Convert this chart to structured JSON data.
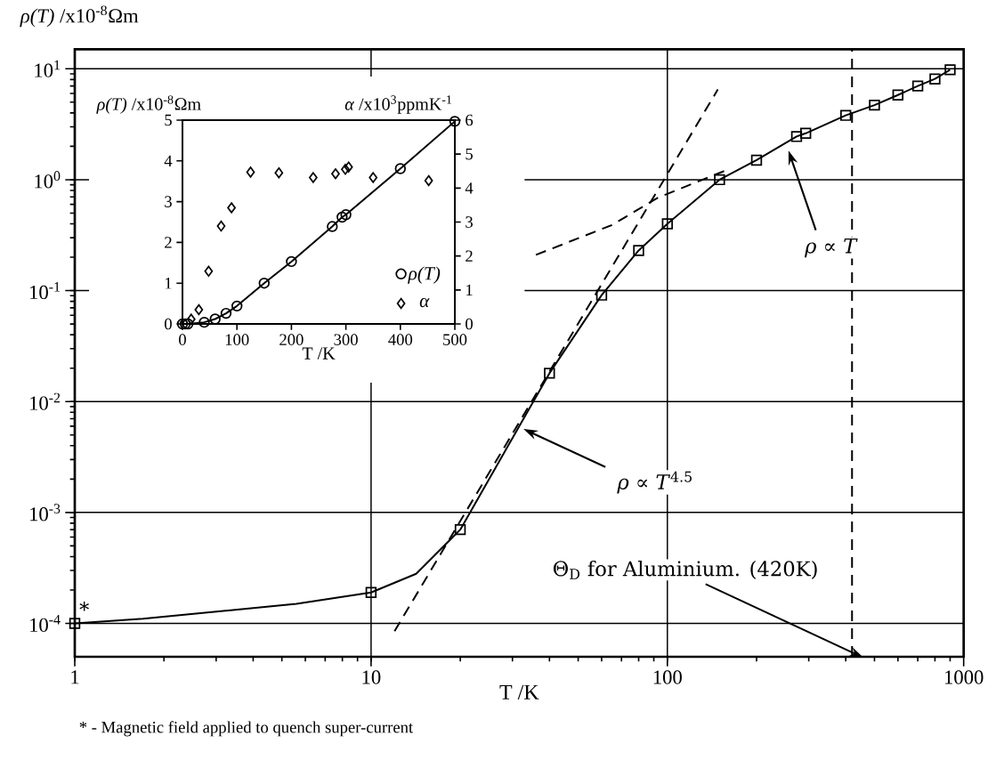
{
  "chart_data": [
    {
      "type": "line",
      "xlabel": "T /K",
      "ylabel": "*ρ(T)* /x10$^{-8}$Ωm",
      "log": "xy",
      "xlim": [
        1,
        1000
      ],
      "ylim": [
        5e-05,
        15
      ],
      "xticks": [
        1,
        10,
        100,
        1000
      ],
      "yticks": [
        {
          "value": 0.0001,
          "label": "10$^{-4}$"
        },
        {
          "value": 0.001,
          "label": "10$^{-3}$"
        },
        {
          "value": 0.01,
          "label": "10$^{-2}$"
        },
        {
          "value": 0.1,
          "label": "10$^{-1}$"
        },
        {
          "value": 1,
          "label": "10$^{0}$"
        },
        {
          "value": 10,
          "label": "10$^{1}$"
        }
      ],
      "grid": true,
      "series": [
        {
          "type": "scatter",
          "marker": "square",
          "color": "#000000",
          "x": [
            1,
            10,
            20,
            40,
            60,
            80,
            100,
            150,
            200,
            273,
            293,
            400,
            500,
            600,
            700,
            800,
            900
          ],
          "values": [
            0.0001,
            0.00019,
            0.0007,
            0.018,
            0.091,
            0.23,
            0.4,
            1.0,
            1.5,
            2.45,
            2.62,
            3.8,
            4.7,
            5.8,
            7.0,
            8.1,
            9.8
          ]
        },
        {
          "type": "line",
          "color": "#000000",
          "x": [
            1,
            1.7,
            5.6,
            10,
            14.2,
            20,
            40,
            60,
            80,
            100,
            150,
            200,
            273,
            293,
            400,
            500,
            600,
            700,
            800,
            900
          ],
          "values": [
            0.0001,
            0.00011,
            0.00015,
            0.00019,
            0.00028,
            0.0007,
            0.018,
            0.091,
            0.23,
            0.4,
            1.0,
            1.5,
            2.45,
            2.62,
            3.8,
            4.7,
            5.8,
            7.0,
            8.1,
            9.8
          ]
        },
        {
          "type": "line",
          "line_style": "dashed",
          "color": "#000000",
          "x": [
            12,
            148
          ],
          "values": [
            8.5e-05,
            6.5
          ]
        },
        {
          "type": "line",
          "line_style": "dashed",
          "color": "#000000",
          "x": [
            36,
            65,
            93,
            156
          ],
          "values": [
            0.21,
            0.39,
            0.69,
            1.2
          ]
        }
      ],
      "ref_lines": [
        {
          "axis": "x",
          "value": 420,
          "line_style": "dashed",
          "color": "#000000"
        }
      ],
      "annotations": [
        {
          "text": "*",
          "x": 1,
          "y": 0.0001
        },
        "*ρ* ∝ *T*",
        "*ρ* ∝ *T*$^{4.5}$",
        "Θ$_{D}$ for Aluminium. (420K)",
        "* - Magnetic field applied to quench super-current"
      ]
    },
    {
      "type": "line",
      "xlabel": "T /K",
      "ylabel": "*ρ(T)* /x10$^{-8}$Ωm",
      "y2label": "*α* /x10$^{3}$ppmK$^{-1}$",
      "xlim": [
        0,
        500
      ],
      "ylim": [
        0,
        5
      ],
      "y2lim": [
        0,
        6
      ],
      "xticks": [
        0,
        100,
        200,
        300,
        400,
        500
      ],
      "yticks": [
        0,
        1,
        2,
        3,
        4,
        5
      ],
      "y2ticks": [
        0,
        1,
        2,
        3,
        4,
        5,
        6
      ],
      "legend": "bottom right",
      "series": [
        {
          "name": "ρ(T)",
          "marker": "circle",
          "color": "#000000",
          "x": [
            0,
            5,
            10,
            40,
            60,
            80,
            100,
            150,
            200,
            275,
            293,
            300,
            400,
            500
          ],
          "values": [
            0,
            0,
            0,
            0.04,
            0.12,
            0.26,
            0.44,
            1.0,
            1.53,
            2.39,
            2.62,
            2.68,
            3.81,
            4.97
          ]
        },
        {
          "name": "α",
          "type": "scatter",
          "marker": "diamond",
          "axis": "y2",
          "color": "#000000",
          "x": [
            16,
            30,
            48,
            71,
            90,
            125,
            177,
            240,
            281,
            299,
            305,
            350,
            452
          ],
          "values": [
            0.14,
            0.42,
            1.55,
            2.88,
            3.42,
            4.47,
            4.45,
            4.31,
            4.42,
            4.55,
            4.62,
            4.31,
            4.22
          ]
        }
      ]
    }
  ]
}
